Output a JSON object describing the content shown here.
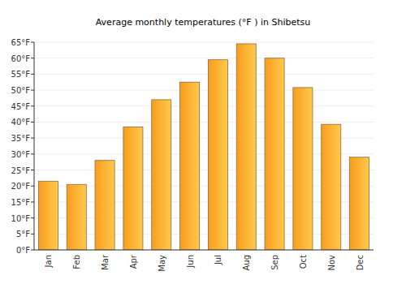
{
  "chart_data": {
    "type": "bar",
    "title": "Average monthly temperatures (°F ) in Shibetsu",
    "categories": [
      "Jan",
      "Feb",
      "Mar",
      "Apr",
      "May",
      "Jun",
      "Jul",
      "Aug",
      "Sep",
      "Oct",
      "Nov",
      "Dec"
    ],
    "values": [
      21.5,
      20.5,
      28,
      38.5,
      47,
      52.5,
      59.5,
      64.5,
      60,
      50.8,
      39.3,
      29
    ],
    "color": "#f99d1c",
    "ylim": [
      0,
      65
    ],
    "yticks": [
      {
        "value": 0,
        "label": "0°F"
      },
      {
        "value": 5,
        "label": "5°F"
      },
      {
        "value": 10,
        "label": "10°F"
      },
      {
        "value": 15,
        "label": "15°F"
      },
      {
        "value": 20,
        "label": "20°F"
      },
      {
        "value": 25,
        "label": "25°F"
      },
      {
        "value": 30,
        "label": "30°F"
      },
      {
        "value": 35,
        "label": "35°F"
      },
      {
        "value": 40,
        "label": "40°F"
      },
      {
        "value": 45,
        "label": "45°F"
      },
      {
        "value": 50,
        "label": "50°F"
      },
      {
        "value": 55,
        "label": "55°F"
      },
      {
        "value": 60,
        "label": "60°F"
      },
      {
        "value": 65,
        "label": "65°F"
      }
    ],
    "grid": true
  }
}
